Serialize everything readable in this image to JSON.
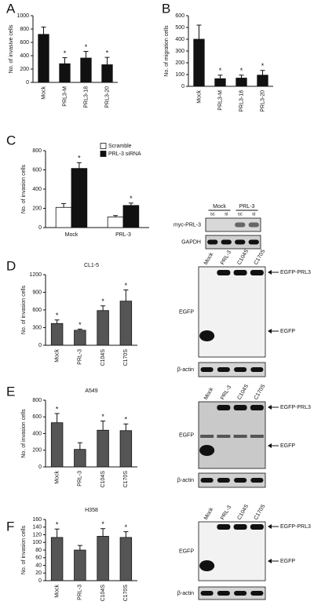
{
  "chart_data": [
    {
      "type": "bar",
      "panel": "A",
      "ylabel": "No. of invasive cells",
      "categories": [
        "Mock",
        "PRL3-M",
        "PRL3-18",
        "PRL3-20"
      ],
      "values": [
        720,
        280,
        365,
        265
      ],
      "errors": [
        110,
        90,
        100,
        110
      ],
      "annotations": [
        null,
        "*",
        "*",
        "*"
      ],
      "color": "#111111",
      "ylim": [
        0,
        1000
      ],
      "yticks": [
        0,
        200,
        400,
        600,
        800,
        1000
      ]
    },
    {
      "type": "bar",
      "panel": "B",
      "ylabel": "No. of migration cells",
      "categories": [
        "Mock",
        "PRL3-M",
        "PRL3-18",
        "PRL3-20"
      ],
      "values": [
        400,
        65,
        70,
        95
      ],
      "errors": [
        120,
        30,
        25,
        40
      ],
      "annotations": [
        null,
        "*",
        "*",
        "*"
      ],
      "color": "#111111",
      "ylim": [
        0,
        600
      ],
      "yticks": [
        0,
        100,
        200,
        300,
        400,
        500,
        600
      ]
    },
    {
      "type": "grouped-bar",
      "panel": "C",
      "ylabel": "No. of invasion cells",
      "categories": [
        "Mock",
        "PRL-3"
      ],
      "series": [
        {
          "name": "Scramble",
          "color": "#ffffff",
          "values": [
            210,
            110
          ],
          "errors": [
            40,
            15
          ],
          "annotations": [
            null,
            null
          ]
        },
        {
          "name": "PRL-3 siRNA",
          "color": "#111111",
          "values": [
            615,
            230
          ],
          "errors": [
            60,
            25
          ],
          "annotations": [
            "*",
            "*"
          ]
        }
      ],
      "ylim": [
        0,
        800
      ],
      "yticks": [
        0,
        200,
        400,
        600,
        800
      ]
    },
    {
      "type": "bar",
      "panel": "D",
      "title": "CL1-5",
      "ylabel": "No. of invasion cells",
      "categories": [
        "Mock",
        "PRL-3",
        "C104S",
        "C170S"
      ],
      "values": [
        370,
        255,
        590,
        750
      ],
      "errors": [
        60,
        20,
        80,
        190
      ],
      "annotations": [
        "*",
        "*",
        "*",
        "*"
      ],
      "color": "#555555",
      "ylim": [
        0,
        1200
      ],
      "yticks": [
        0,
        300,
        600,
        900,
        1200
      ]
    },
    {
      "type": "bar",
      "panel": "E",
      "title": "A549",
      "ylabel": "No. of invasion cells",
      "categories": [
        "Mock",
        "PRL-3",
        "C104S",
        "C170S"
      ],
      "values": [
        530,
        210,
        440,
        435
      ],
      "errors": [
        110,
        80,
        110,
        80
      ],
      "annotations": [
        "*",
        null,
        "*",
        "*"
      ],
      "color": "#555555",
      "ylim": [
        0,
        800
      ],
      "yticks": [
        0,
        200,
        400,
        600,
        800
      ]
    },
    {
      "type": "bar",
      "panel": "F",
      "title": "H358",
      "ylabel": "No. of invasion cells",
      "categories": [
        "Mock",
        "PRL-3",
        "C104S",
        "C170S"
      ],
      "values": [
        113,
        80,
        116,
        113
      ],
      "errors": [
        22,
        12,
        20,
        15
      ],
      "annotations": [
        "*",
        null,
        "*",
        "*"
      ],
      "color": "#555555",
      "ylim": [
        0,
        160
      ],
      "yticks": [
        0,
        20,
        40,
        60,
        80,
        100,
        120,
        140,
        160
      ]
    }
  ],
  "blots": [
    {
      "groups": [
        "Mock",
        "PRL-3"
      ],
      "lanes": [
        "sc",
        "si",
        "sc",
        "si"
      ],
      "rows": [
        "myc-PRL-3",
        "GAPDH"
      ]
    },
    {
      "lanes": [
        "Mock",
        "PRL-3",
        "C104S",
        "C170S"
      ],
      "rows": [
        "EGFP",
        "β-actin"
      ],
      "arrows": [
        "EGFP-PRL3",
        "EGFP"
      ]
    },
    {
      "lanes": [
        "Mock",
        "PRL-3",
        "C104S",
        "C170S"
      ],
      "rows": [
        "EGFP",
        "β-actin"
      ],
      "arrows": [
        "EGFP-PRL3",
        "EGFP"
      ]
    },
    {
      "lanes": [
        "Mock",
        "PRL-3",
        "C104S",
        "C170S"
      ],
      "rows": [
        "EGFP",
        "β-actin"
      ],
      "arrows": [
        "EGFP-PRL3",
        "EGFP"
      ]
    }
  ]
}
